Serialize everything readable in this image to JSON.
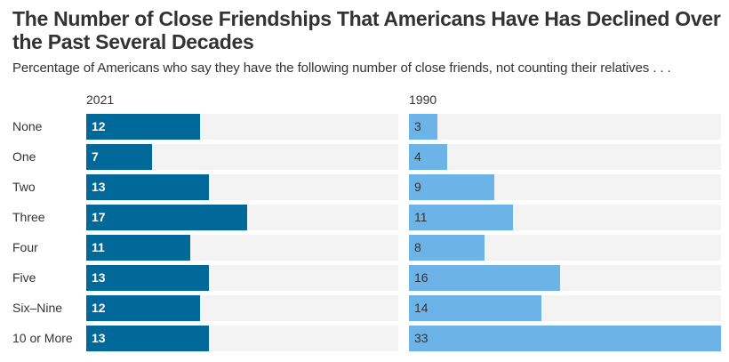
{
  "header": {
    "title": "The Number of Close Friendships That Americans Have Has Declined Over the Past Several Decades",
    "subtitle": "Percentage of Americans who say they have the following number of close friends, not counting their relatives . . ."
  },
  "colors": {
    "series_2021": "#00699a",
    "series_1990": "#6cb4e8",
    "track": "#f3f3f3",
    "text": "#333333"
  },
  "chart_data": {
    "type": "bar",
    "orientation": "horizontal",
    "title": "The Number of Close Friendships That Americans Have Has Declined Over the Past Several Decades",
    "subtitle": "Percentage of Americans who say they have the following number of close friends, not counting their relatives . . .",
    "categories": [
      "None",
      "One",
      "Two",
      "Three",
      "Four",
      "Five",
      "Six–Nine",
      "10 or More"
    ],
    "series": [
      {
        "name": "2021",
        "values": [
          12,
          7,
          13,
          17,
          11,
          13,
          12,
          13
        ]
      },
      {
        "name": "1990",
        "values": [
          3,
          4,
          9,
          11,
          8,
          16,
          14,
          33
        ]
      }
    ],
    "xlabel": "",
    "ylabel": "",
    "xlim": [
      0,
      33
    ],
    "grid": false,
    "legend": "panel headers"
  }
}
